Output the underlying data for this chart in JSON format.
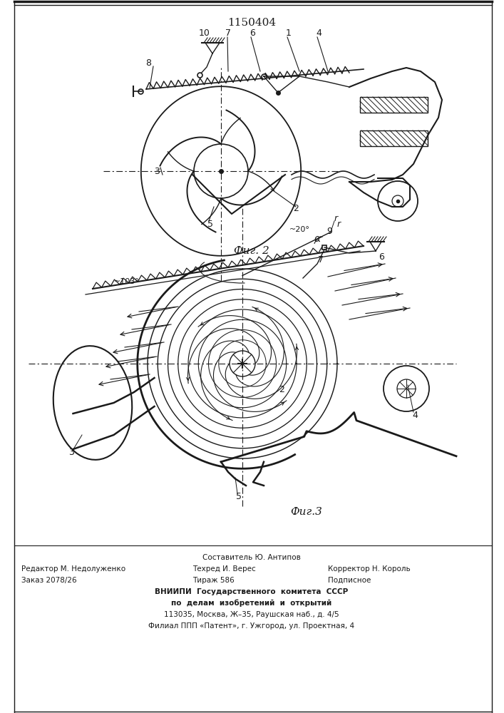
{
  "title": "1150404",
  "fig2_label": "Фиг. 2",
  "fig3_label": "Фиг.3",
  "footer_line1": "Составитель Ю. Антипов",
  "footer_line2_left": "Редактор М. Недолуженко",
  "footer_line2_mid": "Техред И. Верес",
  "footer_line2_right": "Корректор Н. Король",
  "footer_line3_left": "Заказ 2078/26",
  "footer_line3_mid": "Тираж 586",
  "footer_line3_right": "Подписное",
  "footer_line4": "ВНИИПИ  Государственного  комитета  СССР",
  "footer_line5": "по  делам  изобретений  и  открытий",
  "footer_line6": "113035, Москва, Ж–35, Раушская наб., д. 4/5",
  "footer_line7": "Филиал ППП «Патент», г. Ужгород, ул. Проектная, 4",
  "bg_color": "#ffffff",
  "line_color": "#1a1a1a"
}
